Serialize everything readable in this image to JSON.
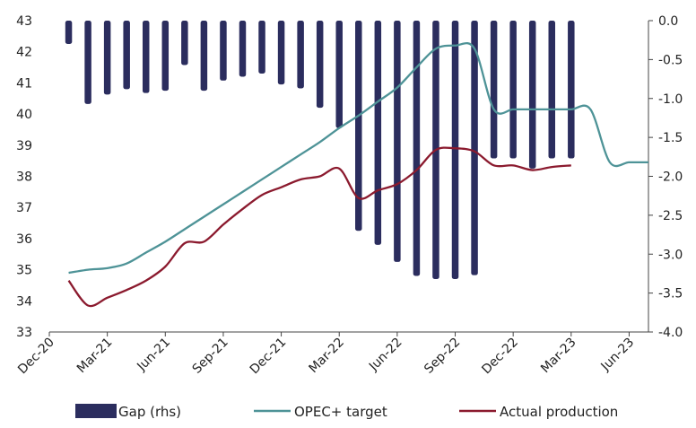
{
  "chart_data": {
    "type": "bar+line",
    "title": "",
    "x_tick_labels": [
      "Dec-20",
      "Mar-21",
      "Jun-21",
      "Sep-21",
      "Dec-21",
      "Mar-22",
      "Jun-22",
      "Sep-22",
      "Dec-22",
      "Mar-23",
      "Jun-23"
    ],
    "x_range_months": [
      0,
      31
    ],
    "y_left": {
      "min": 33,
      "max": 43,
      "step": 1,
      "labels": [
        "33",
        "34",
        "35",
        "36",
        "37",
        "38",
        "39",
        "40",
        "41",
        "42",
        "43"
      ]
    },
    "y_right": {
      "min": -4.0,
      "max": 0.0,
      "step": 0.5,
      "labels": [
        "-4.0",
        "-3.5",
        "-3.0",
        "-2.5",
        "-2.0",
        "-1.5",
        "-1.0",
        "-0.5",
        "0.0"
      ]
    },
    "legend": [
      "Gap (rhs)",
      "OPEC+ target",
      "Actual production"
    ],
    "colors": {
      "gap": "#2b2d5e",
      "target": "#4e9397",
      "actual": "#8b1a2e",
      "axis": "#444444"
    },
    "series": [
      {
        "name": "Gap (rhs)",
        "axis": "right",
        "type": "bar",
        "x": [
          1,
          2,
          3,
          4,
          5,
          6,
          7,
          8,
          9,
          10,
          11,
          12,
          13,
          14,
          15,
          16,
          17,
          18,
          19,
          20,
          21,
          22,
          23,
          24,
          25,
          26,
          27
        ],
        "values": [
          -0.3,
          -1.07,
          -0.95,
          -0.88,
          -0.93,
          -0.9,
          -0.57,
          -0.9,
          -0.77,
          -0.72,
          -0.68,
          -0.82,
          -0.87,
          -1.12,
          -1.38,
          -2.7,
          -2.88,
          -3.1,
          -3.28,
          -3.32,
          -3.32,
          -3.27,
          -1.77,
          -1.77,
          -1.9,
          -1.77,
          -1.77
        ]
      },
      {
        "name": "OPEC+ target",
        "axis": "left",
        "type": "line",
        "x": [
          1,
          2,
          3,
          4,
          5,
          6,
          7,
          8,
          9,
          10,
          11,
          12,
          13,
          14,
          15,
          16,
          17,
          18,
          19,
          20,
          21,
          22,
          23,
          24,
          25,
          26,
          27,
          28,
          29,
          30,
          31
        ],
        "values": [
          34.9,
          35.0,
          35.05,
          35.2,
          35.55,
          35.9,
          36.3,
          36.7,
          37.1,
          37.5,
          37.9,
          38.3,
          38.7,
          39.1,
          39.55,
          39.95,
          40.4,
          40.85,
          41.5,
          42.1,
          42.2,
          42.1,
          40.15,
          40.15,
          40.15,
          40.15,
          40.15,
          40.15,
          38.45,
          38.45,
          38.45
        ]
      },
      {
        "name": "Actual production",
        "axis": "left",
        "type": "line",
        "x": [
          1,
          2,
          3,
          4,
          5,
          6,
          7,
          8,
          9,
          10,
          11,
          12,
          13,
          14,
          15,
          16,
          17,
          18,
          19,
          20,
          21,
          22,
          23,
          24,
          25,
          26,
          27
        ],
        "values": [
          34.65,
          33.85,
          34.1,
          34.35,
          34.65,
          35.1,
          35.85,
          35.9,
          36.45,
          36.95,
          37.4,
          37.65,
          37.9,
          38.0,
          38.25,
          37.3,
          37.55,
          37.75,
          38.2,
          38.85,
          38.9,
          38.8,
          38.35,
          38.35,
          38.2,
          38.3,
          38.35
        ]
      }
    ]
  }
}
